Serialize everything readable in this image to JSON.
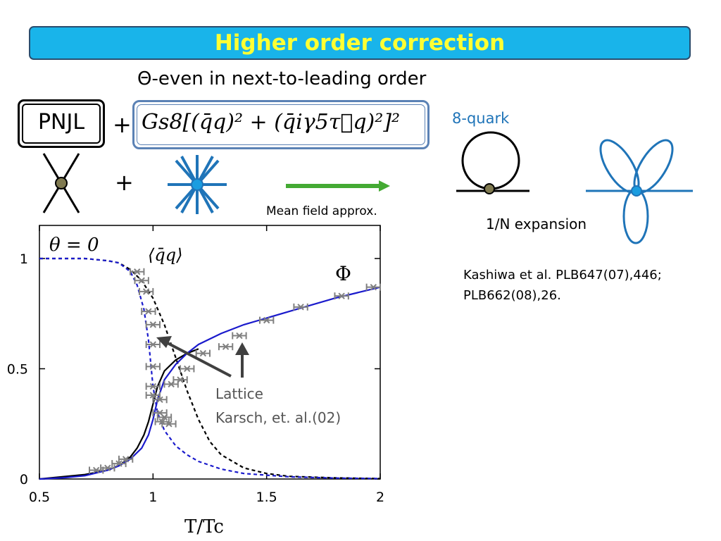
{
  "slide": {
    "title": "Higher order correction",
    "subtitle": "Θ-even in next-to-leading order",
    "pnjl_label": "PNJL",
    "plus_symbol": "+",
    "formula": "Gs8[(q̄q)² + (q̄iγ5τ⃗q)²]²",
    "eight_quark_label": "8-quark",
    "mean_field_label": "Mean field approx.",
    "expansion_label": "1/N expansion",
    "reference_line1": "Kashiwa et al. PLB647(07),446;",
    "reference_line2": "PLB662(08),26."
  },
  "chart_data": {
    "type": "line",
    "annotation_theta": "θ = 0",
    "label_qq": "⟨q̄q⟩",
    "label_phi": "Φ",
    "xlabel": "T/Tc",
    "ylabel": "",
    "xlim": [
      0.5,
      2.0
    ],
    "ylim": [
      0,
      1.15
    ],
    "x_ticks": [
      "0.5",
      "1",
      "1.5",
      "2"
    ],
    "y_ticks": [
      "0",
      "0.5",
      "1"
    ],
    "lattice_label_line1": "Lattice",
    "lattice_label_line2": "Karsch, et. al.(02)",
    "colors": {
      "black_dashed": "#000000",
      "blue_dashed": "#1a1acc",
      "blue_solid": "#1a1acc",
      "lattice": "#808080",
      "arrow": "#404040"
    },
    "series": [
      {
        "style": "dashed-black",
        "x": [
          0.5,
          0.7,
          0.8,
          0.85,
          0.9,
          0.95,
          1.0,
          1.05,
          1.1,
          1.15,
          1.2,
          1.25,
          1.3,
          1.4,
          1.5,
          1.6,
          1.8,
          2.0
        ],
        "y": [
          1.0,
          1.0,
          0.99,
          0.98,
          0.95,
          0.9,
          0.82,
          0.7,
          0.55,
          0.4,
          0.27,
          0.17,
          0.11,
          0.05,
          0.025,
          0.012,
          0.005,
          0.002
        ]
      },
      {
        "style": "dashed-blue",
        "x": [
          0.5,
          0.7,
          0.8,
          0.85,
          0.9,
          0.93,
          0.96,
          0.98,
          1.0,
          1.02,
          1.05,
          1.1,
          1.15,
          1.2,
          1.3,
          1.4,
          1.6,
          1.8,
          2.0
        ],
        "y": [
          1.0,
          1.0,
          0.99,
          0.98,
          0.94,
          0.88,
          0.77,
          0.63,
          0.42,
          0.3,
          0.22,
          0.15,
          0.11,
          0.08,
          0.045,
          0.025,
          0.01,
          0.004,
          0.002
        ]
      },
      {
        "style": "solid-black",
        "x": [
          0.5,
          0.7,
          0.8,
          0.85,
          0.9,
          0.93,
          0.96,
          0.98,
          1.0,
          1.02,
          1.05,
          1.1,
          1.15,
          1.2
        ],
        "y": [
          0.0,
          0.02,
          0.04,
          0.06,
          0.1,
          0.14,
          0.2,
          0.26,
          0.34,
          0.42,
          0.49,
          0.54,
          0.57,
          0.59
        ]
      },
      {
        "style": "solid-blue",
        "x": [
          0.5,
          0.6,
          0.7,
          0.8,
          0.85,
          0.9,
          0.95,
          0.98,
          1.0,
          1.02,
          1.05,
          1.1,
          1.15,
          1.2,
          1.3,
          1.4,
          1.5,
          1.6,
          1.7,
          1.8,
          1.9,
          2.0
        ],
        "y": [
          0.0,
          0.005,
          0.015,
          0.04,
          0.06,
          0.09,
          0.14,
          0.2,
          0.27,
          0.36,
          0.45,
          0.52,
          0.57,
          0.61,
          0.66,
          0.7,
          0.73,
          0.76,
          0.79,
          0.82,
          0.845,
          0.87
        ]
      }
    ],
    "lattice_points": {
      "x": [
        0.75,
        0.8,
        0.85,
        0.88,
        0.93,
        0.95,
        0.97,
        0.98,
        1.0,
        1.0,
        1.0,
        1.0,
        1.0,
        1.03,
        1.03,
        1.04,
        1.05,
        1.07,
        1.08,
        1.12,
        1.15,
        1.22,
        1.32,
        1.38,
        1.5,
        1.65,
        1.83,
        1.97
      ],
      "y": [
        0.04,
        0.05,
        0.07,
        0.09,
        0.94,
        0.9,
        0.85,
        0.76,
        0.7,
        0.61,
        0.51,
        0.42,
        0.38,
        0.36,
        0.3,
        0.26,
        0.28,
        0.25,
        0.43,
        0.45,
        0.5,
        0.57,
        0.6,
        0.65,
        0.72,
        0.78,
        0.83,
        0.87
      ],
      "xerr": 0.03
    }
  }
}
